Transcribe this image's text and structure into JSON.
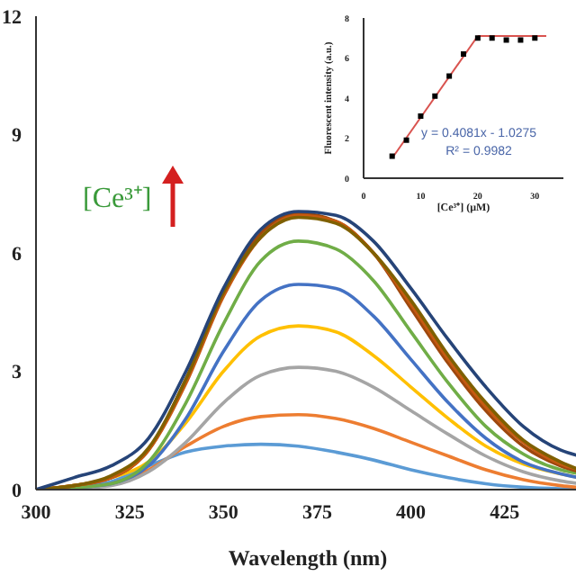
{
  "chart_data": [
    {
      "type": "line",
      "xlabel": "Wavelength (nm)",
      "x": [
        300,
        310,
        320,
        330,
        340,
        350,
        360,
        370,
        380,
        390,
        400,
        410,
        420,
        430,
        440,
        445
      ],
      "xlim": [
        300,
        445
      ],
      "xticks": [
        300,
        325,
        350,
        375,
        400,
        425
      ],
      "ylim": [
        0,
        12
      ],
      "yticks": [
        0,
        3,
        6,
        9,
        12
      ],
      "annotations": [
        "[Ce³⁺]"
      ],
      "series": [
        {
          "color": "#5b9bd5",
          "values": [
            0,
            0.05,
            0.2,
            0.6,
            0.95,
            1.1,
            1.15,
            1.1,
            0.95,
            0.75,
            0.5,
            0.3,
            0.15,
            0.06,
            0.02,
            0.01
          ]
        },
        {
          "color": "#ed7d31",
          "values": [
            0,
            0.05,
            0.15,
            0.5,
            1.1,
            1.6,
            1.85,
            1.9,
            1.8,
            1.55,
            1.2,
            0.85,
            0.5,
            0.25,
            0.1,
            0.05
          ]
        },
        {
          "color": "#a5a5a5",
          "values": [
            0,
            0.03,
            0.1,
            0.45,
            1.2,
            2.2,
            2.9,
            3.1,
            3.0,
            2.6,
            2.0,
            1.4,
            0.85,
            0.45,
            0.22,
            0.15
          ]
        },
        {
          "color": "#ffc000",
          "values": [
            0,
            0.1,
            0.3,
            0.7,
            1.7,
            3.0,
            3.9,
            4.15,
            4.0,
            3.4,
            2.6,
            1.8,
            1.1,
            0.65,
            0.4,
            0.3
          ]
        },
        {
          "color": "#4472c4",
          "values": [
            0,
            0.05,
            0.15,
            0.6,
            1.8,
            3.5,
            4.8,
            5.2,
            5.1,
            4.4,
            3.3,
            2.2,
            1.3,
            0.7,
            0.4,
            0.3
          ]
        },
        {
          "color": "#70ad47",
          "values": [
            0,
            0.05,
            0.15,
            0.7,
            2.2,
            4.2,
            5.8,
            6.3,
            6.1,
            5.3,
            4.0,
            2.7,
            1.6,
            0.9,
            0.5,
            0.4
          ]
        },
        {
          "color": "#9e480e",
          "values": [
            0,
            0.1,
            0.3,
            1.0,
            2.8,
            5.0,
            6.5,
            7.0,
            6.8,
            6.0,
            4.6,
            3.2,
            2.0,
            1.1,
            0.6,
            0.45
          ]
        },
        {
          "color": "#c55a11",
          "values": [
            0,
            0.1,
            0.3,
            1.0,
            2.7,
            4.9,
            6.4,
            6.95,
            6.8,
            6.0,
            4.7,
            3.3,
            2.1,
            1.2,
            0.65,
            0.5
          ]
        },
        {
          "color": "#7f6000",
          "values": [
            0,
            0.1,
            0.35,
            1.05,
            2.8,
            5.0,
            6.4,
            6.9,
            6.75,
            6.0,
            4.8,
            3.4,
            2.2,
            1.25,
            0.7,
            0.5
          ]
        },
        {
          "color": "#264478",
          "values": [
            0,
            0.3,
            0.6,
            1.3,
            3.0,
            5.1,
            6.6,
            7.05,
            6.95,
            6.3,
            5.1,
            3.8,
            2.6,
            1.6,
            1.0,
            0.85
          ]
        }
      ]
    },
    {
      "type": "scatter",
      "xlabel": "[Ce³⁺] (μM)",
      "ylabel": "Fluorescent intensity (a.u.)",
      "xlim": [
        0,
        35
      ],
      "xticks": [
        0,
        10,
        20,
        30
      ],
      "ylim": [
        0,
        8
      ],
      "yticks": [
        0,
        2,
        4,
        6,
        8
      ],
      "marker": "square",
      "annotations": [
        "y = 0.4081x - 1.0275",
        "R² = 0.9982"
      ],
      "series": [
        {
          "type": "line",
          "marker": "none",
          "color": "#d9534f",
          "x": [
            5,
            20
          ],
          "values": [
            1.0,
            7.1
          ]
        },
        {
          "type": "line",
          "marker": "none",
          "color": "#d9534f",
          "x": [
            20,
            32
          ],
          "values": [
            7.1,
            7.1
          ]
        },
        {
          "color": "#000000",
          "x": [
            5,
            7.5,
            10,
            12.5,
            15,
            17.5,
            20,
            22.5,
            25,
            27.5,
            30
          ],
          "values": [
            1.1,
            1.9,
            3.1,
            4.1,
            5.1,
            6.2,
            7.0,
            7.0,
            6.9,
            6.9,
            7.0
          ]
        }
      ]
    }
  ]
}
